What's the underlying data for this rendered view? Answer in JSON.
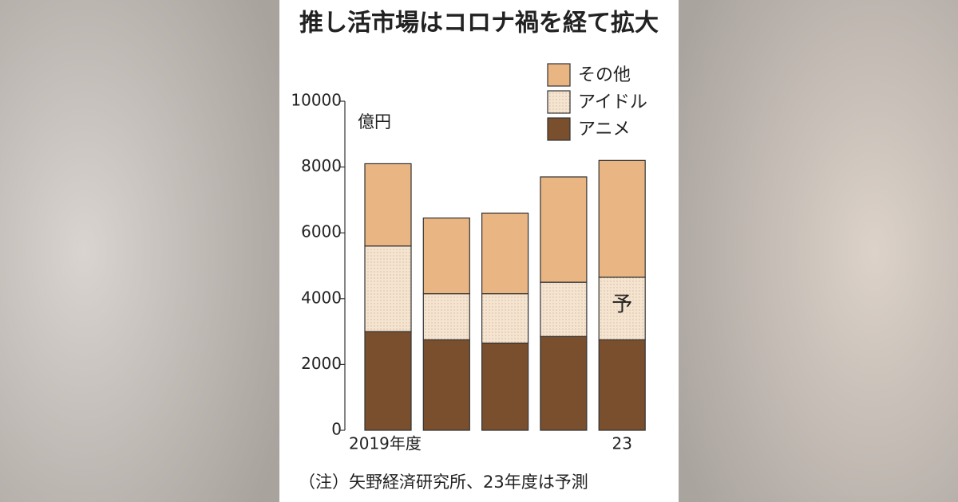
{
  "chart_data": {
    "type": "stacked-bar",
    "title": "推し活市場はコロナ禍を経て拡大",
    "unit_label": "億円",
    "note": "（注）矢野経済研究所、23年度は予測",
    "annotation": "予",
    "categories": [
      "2019年度",
      null,
      null,
      null,
      "23"
    ],
    "series": [
      {
        "name": "アニメ",
        "color": "#7a4f2e",
        "values": [
          3000,
          2750,
          2650,
          2850,
          2750
        ]
      },
      {
        "name": "アイドル",
        "color": "#f5e4d0",
        "values": [
          2600,
          1400,
          1500,
          1650,
          1900
        ]
      },
      {
        "name": "その他",
        "color": "#e8b583",
        "values": [
          2500,
          2300,
          2450,
          3200,
          3550
        ]
      }
    ],
    "ylim": [
      0,
      10000
    ],
    "yticks": [
      0,
      2000,
      4000,
      6000,
      8000,
      10000
    ]
  }
}
